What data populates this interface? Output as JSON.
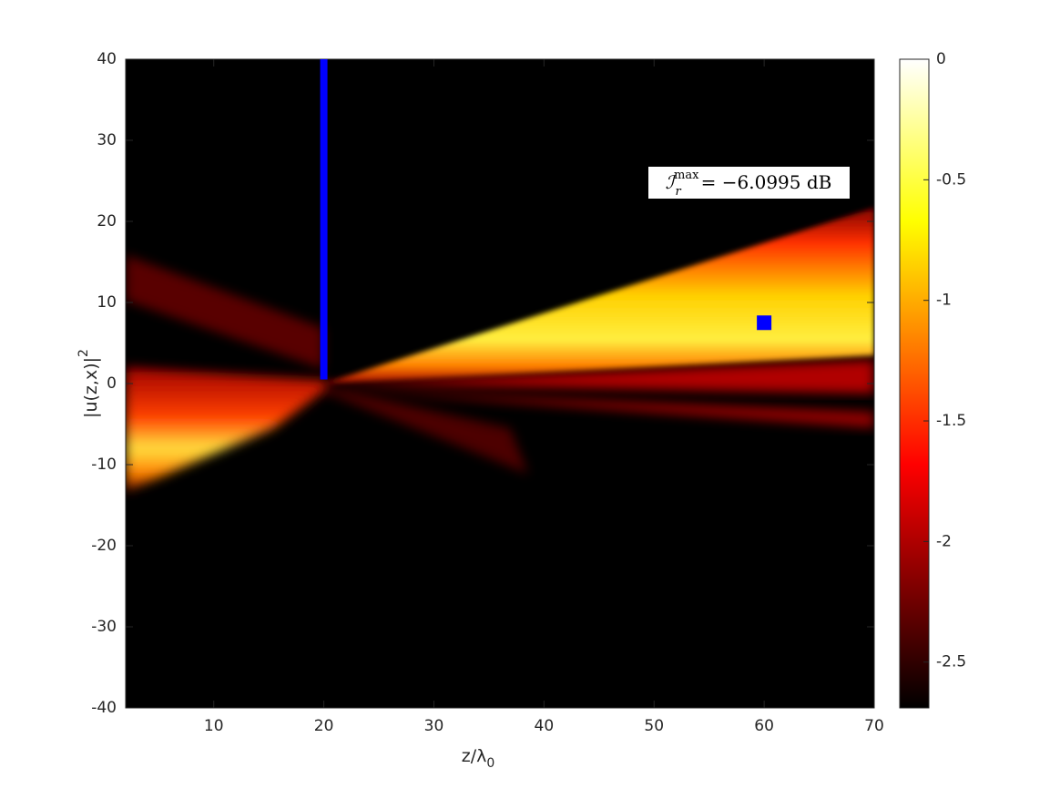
{
  "chart_data": {
    "type": "heatmap",
    "xlabel": "z/λ",
    "xlabel_sub": "0",
    "ylabel": "|u(z,x)|",
    "ylabel_sup": "2",
    "xlim": [
      2,
      70
    ],
    "xticks": [
      10,
      20,
      30,
      40,
      50,
      60,
      70
    ],
    "ylim": [
      -40,
      40
    ],
    "yticks": [
      -40,
      -30,
      -20,
      -10,
      0,
      10,
      20,
      30,
      40
    ],
    "colormap": "hot",
    "clim": [
      -2.69,
      0
    ],
    "cticks": [
      -2.5,
      -2,
      -1.5,
      -1,
      -0.5,
      0
    ],
    "barrier": {
      "x": 20,
      "y": [
        0.5,
        40
      ],
      "color": "#0000ff"
    },
    "marker": {
      "x": 60,
      "y": 7.5,
      "color": "#0000ff"
    },
    "annotation": {
      "symbol": "ℐ",
      "sub": "r",
      "sup": "max",
      "text": "= −6.0995 dB"
    }
  }
}
